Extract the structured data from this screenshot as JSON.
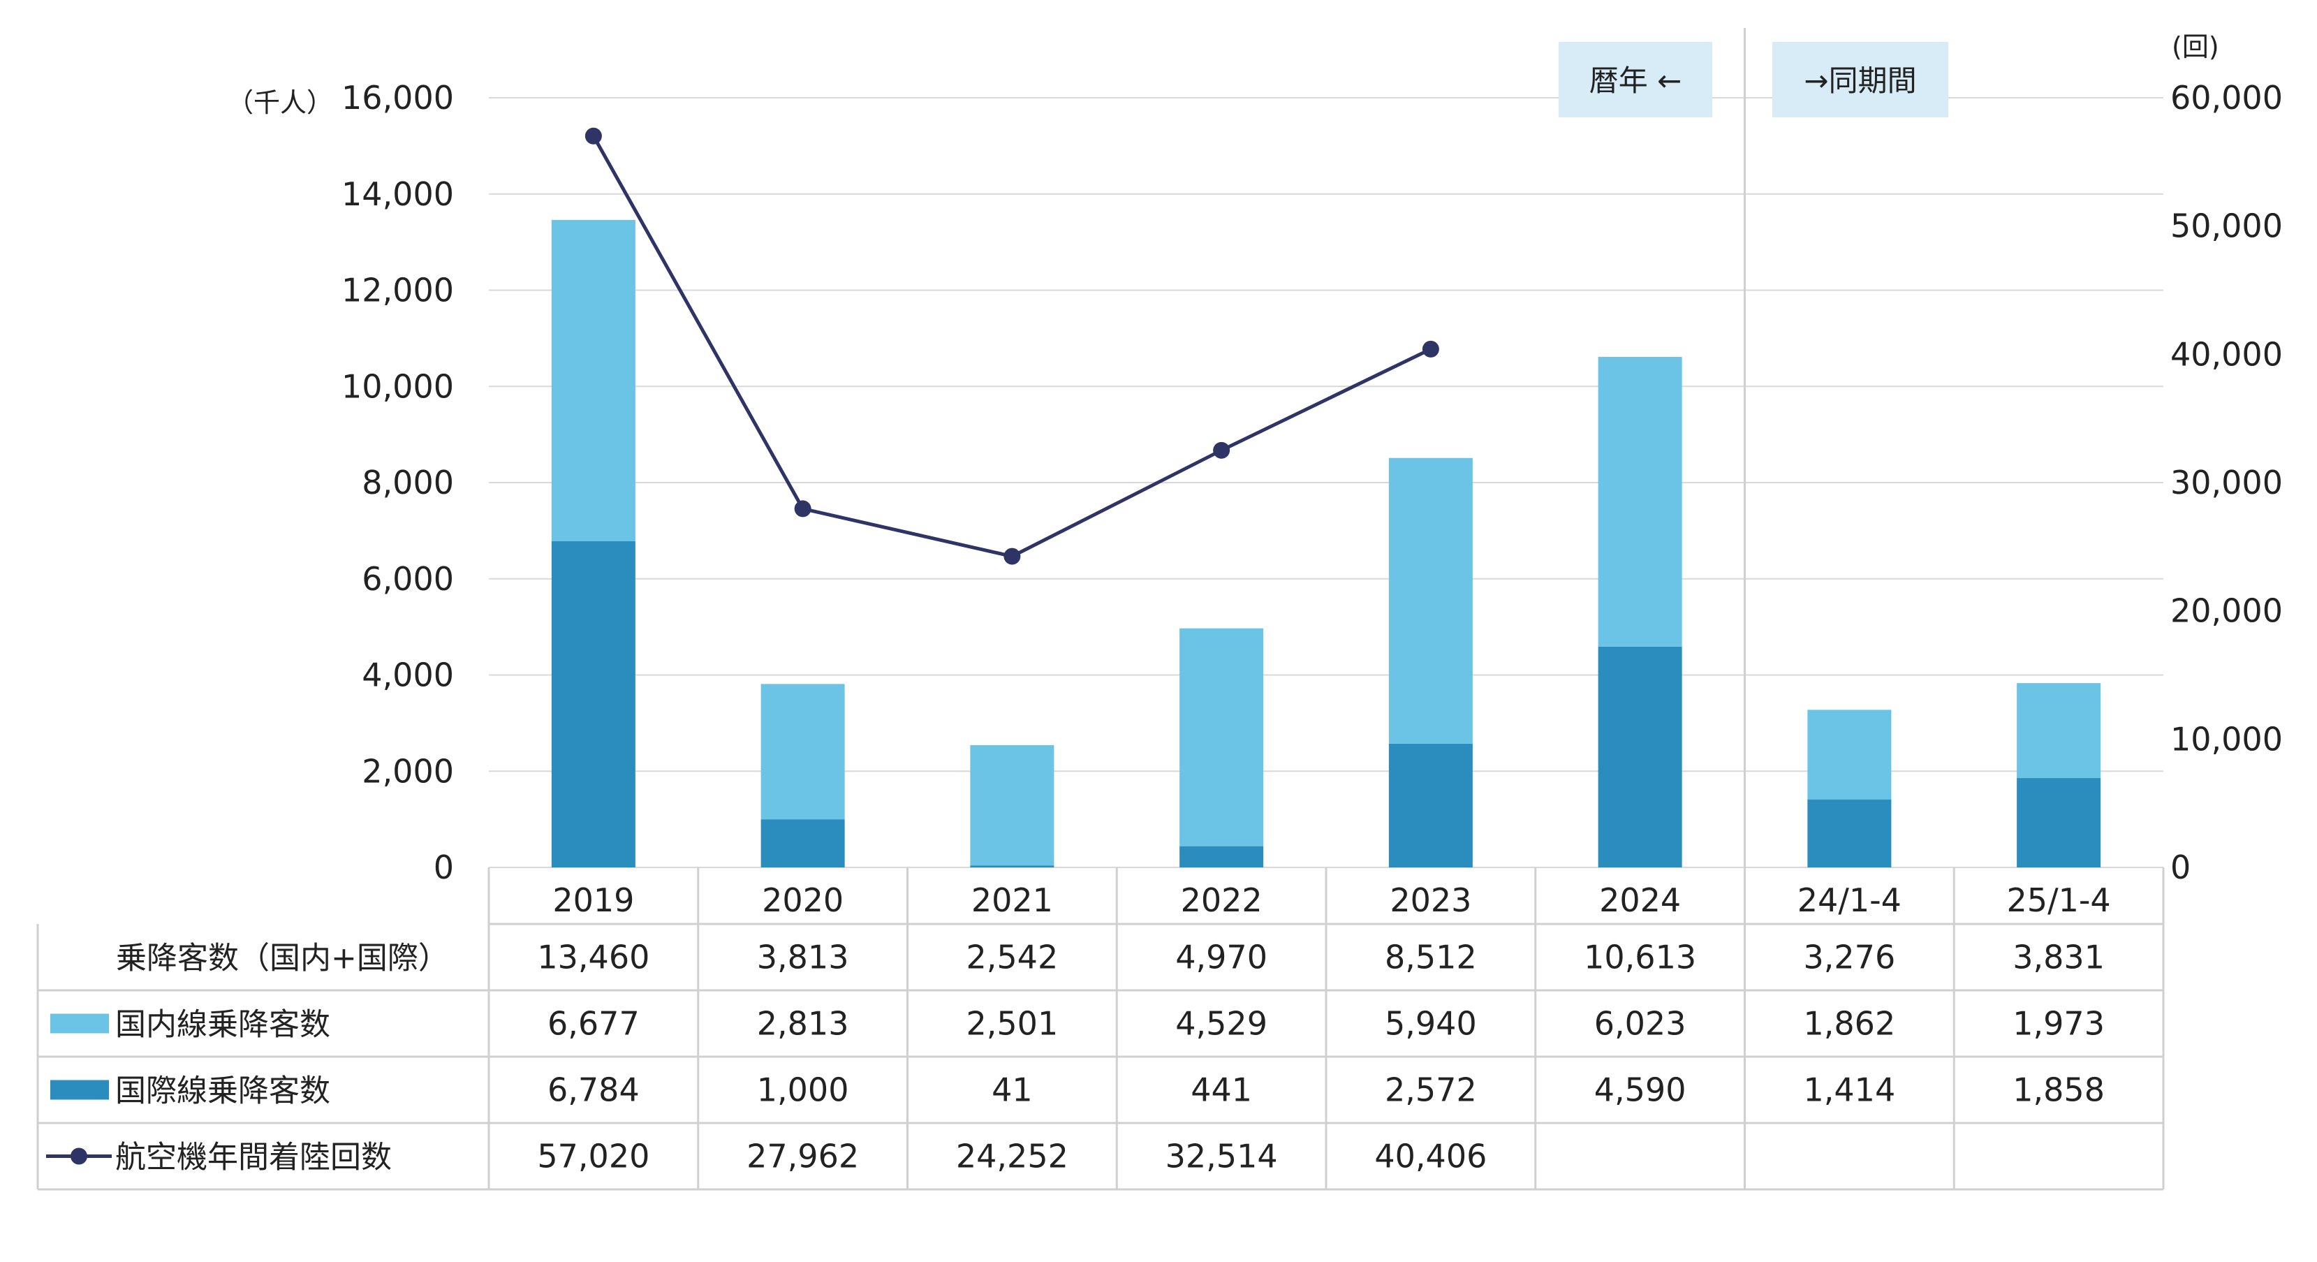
{
  "chart_data": {
    "type": "bar",
    "stacked": true,
    "categories": [
      "2019",
      "2020",
      "2021",
      "2022",
      "2023",
      "2024",
      "24/1-4",
      "25/1-4"
    ],
    "series": [
      {
        "name": "国際線乗降客数",
        "type": "bar",
        "axis": "left",
        "color": "#2b8cbe",
        "values": [
          6784,
          1000,
          41,
          441,
          2572,
          4590,
          1414,
          1858
        ]
      },
      {
        "name": "国内線乗降客数",
        "type": "bar",
        "axis": "left",
        "color": "#6bc3e6",
        "values": [
          6677,
          2813,
          2501,
          4529,
          5940,
          6023,
          1862,
          1973
        ]
      },
      {
        "name": "航空機年間着陸回数",
        "type": "line",
        "axis": "right",
        "color": "#2e3466",
        "values": [
          57020,
          27962,
          24252,
          32514,
          40406,
          null,
          null,
          null
        ]
      }
    ],
    "yleft": {
      "unit": "（千人）",
      "min": 0,
      "max": 16000,
      "ticks": [
        "0",
        "2,000",
        "4,000",
        "6,000",
        "8,000",
        "10,000",
        "12,000",
        "14,000",
        "16,000"
      ]
    },
    "yright": {
      "unit": "(回)",
      "min": 0,
      "max": 60000,
      "ticks": [
        "0",
        "10,000",
        "20,000",
        "30,000",
        "40,000",
        "50,000",
        "60,000"
      ]
    },
    "annotations": {
      "left_tag": "暦年 ←",
      "right_tag": "→同期間"
    },
    "grid": true,
    "table": {
      "rows": [
        {
          "label": "乗降客数（国内+国際）",
          "marker": "none",
          "cells": [
            "13,460",
            "3,813",
            "2,542",
            "4,970",
            "8,512",
            "10,613",
            "3,276",
            "3,831"
          ]
        },
        {
          "label": "国内線乗降客数",
          "marker": "bar-light",
          "cells": [
            "6,677",
            "2,813",
            "2,501",
            "4,529",
            "5,940",
            "6,023",
            "1,862",
            "1,973"
          ]
        },
        {
          "label": "国際線乗降客数",
          "marker": "bar-dark",
          "cells": [
            "6,784",
            "1,000",
            "41",
            "441",
            "2,572",
            "4,590",
            "1,414",
            "1,858"
          ]
        },
        {
          "label": "航空機年間着陸回数",
          "marker": "line",
          "cells": [
            "57,020",
            "27,962",
            "24,252",
            "32,514",
            "40,406",
            "",
            "",
            ""
          ]
        }
      ]
    }
  }
}
